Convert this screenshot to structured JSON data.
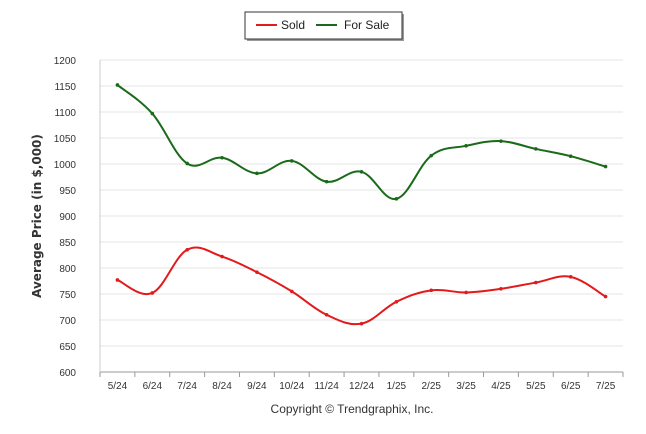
{
  "chart_data": {
    "type": "line",
    "xlabel": "",
    "ylabel": "Average Price (in $,000)",
    "ylim": [
      600,
      1200
    ],
    "yticks": [
      600,
      650,
      700,
      750,
      800,
      850,
      900,
      950,
      1000,
      1050,
      1100,
      1150,
      1200
    ],
    "grid": true,
    "legend_position": "top-center",
    "categories": [
      "5/24",
      "6/24",
      "7/24",
      "8/24",
      "9/24",
      "10/24",
      "11/24",
      "12/24",
      "1/25",
      "2/25",
      "3/25",
      "4/25",
      "5/25",
      "6/25",
      "7/25"
    ],
    "series": [
      {
        "name": "Sold",
        "color": "#e31a1c",
        "values": [
          777,
          752,
          835,
          822,
          792,
          755,
          710,
          693,
          735,
          757,
          753,
          760,
          772,
          783,
          745
        ]
      },
      {
        "name": "For Sale",
        "color": "#1a6a1a",
        "values": [
          1152,
          1097,
          1001,
          1012,
          982,
          1006,
          966,
          985,
          933,
          1016,
          1035,
          1044,
          1029,
          1015,
          995
        ]
      }
    ],
    "credit": "Copyright © Trendgraphix, Inc."
  }
}
